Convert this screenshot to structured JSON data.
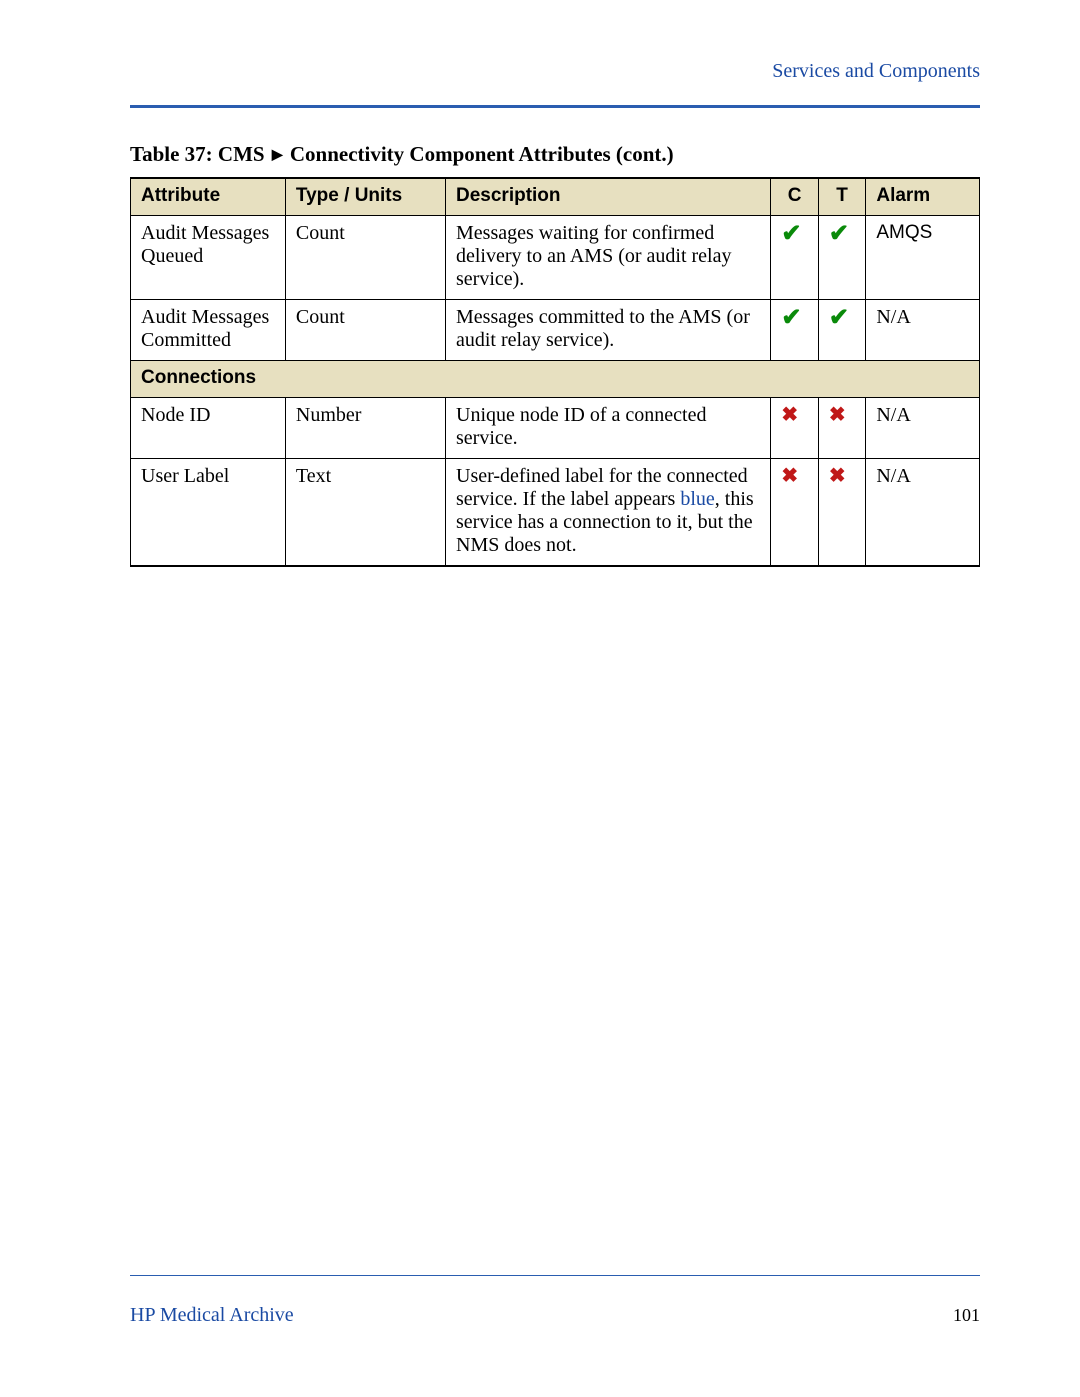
{
  "header": {
    "section_link": "Services and Components"
  },
  "table": {
    "title_prefix": "Table 37: CMS",
    "title_suffix": "Connectivity Component Attributes (cont.)",
    "columns": {
      "attribute": "Attribute",
      "type": "Type / Units",
      "description": "Description",
      "c": "C",
      "t": "T",
      "alarm": "Alarm"
    },
    "rows": {
      "r1": {
        "attribute": "Audit Messages Queued",
        "type": "Count",
        "description": "Messages waiting for confirmed delivery to an AMS (or audit relay service).",
        "c": "check",
        "t": "check",
        "alarm": "AMQS"
      },
      "r2": {
        "attribute": "Audit Messages Committed",
        "type": "Count",
        "description": "Messages committed to the AMS (or audit relay service).",
        "c": "check",
        "t": "check",
        "alarm": "N/A"
      },
      "section1": {
        "label": "Connections"
      },
      "r3": {
        "attribute": "Node ID",
        "type": "Number",
        "description": "Unique node ID of a connected service.",
        "c": "cross",
        "t": "cross",
        "alarm": "N/A"
      },
      "r4": {
        "attribute": "User Label",
        "type": "Text",
        "desc_part1": "User-defined label for the connected service. If the label appears ",
        "desc_blue": "blue",
        "desc_part2": ", this service has a connection to it, but the NMS does not.",
        "c": "cross",
        "t": "cross",
        "alarm": "N/A"
      }
    }
  },
  "footer": {
    "left": "HP Medical Archive",
    "page": "101"
  },
  "colors": {
    "link_blue": "#1a4aa3",
    "rule_blue": "#2a5db0",
    "header_bg": "#e7e0c0",
    "check_green": "#0a8a0a",
    "cross_red": "#c01818"
  }
}
